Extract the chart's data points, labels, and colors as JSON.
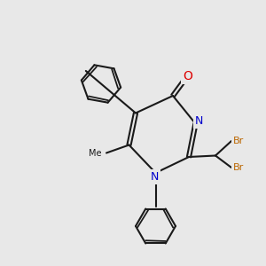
{
  "bg_color": "#e8e8e8",
  "bond_color": "#1a1a1a",
  "bond_lw": 1.5,
  "atom_colors": {
    "O": "#dd0000",
    "N": "#0000cc",
    "Br": "#bb6600",
    "C": "#1a1a1a"
  },
  "font_size_atom": 9,
  "font_size_small": 8
}
